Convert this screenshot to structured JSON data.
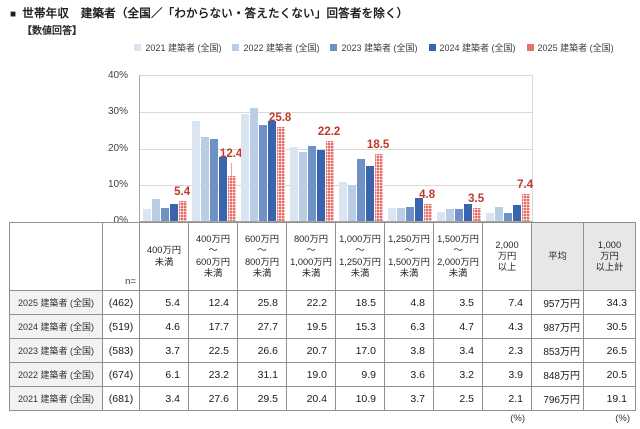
{
  "header": {
    "bullet": "■",
    "title": "世帯年収　建築者（全国／「わからない・答えたくない」回答者を除く）",
    "subtitle": "【数値回答】"
  },
  "chart_data": {
    "type": "bar",
    "title": "世帯年収 建築者（全国／「わからない・答えたくない」回答者を除く）",
    "categories": [
      "400万円未満",
      "400万円～600万円未満",
      "600万円～800万円未満",
      "800万円～1,000万円未満",
      "1,000万円～1,250万円未満",
      "1,250万円～1,500万円未満",
      "1,500万円～2,000万円未満",
      "2,000万円以上"
    ],
    "series": [
      {
        "name": "2021 建築者 (全国)",
        "color": "#dbe5f1",
        "pattern": false,
        "values": [
          3.4,
          27.6,
          29.5,
          20.4,
          10.9,
          3.7,
          2.5,
          2.1
        ]
      },
      {
        "name": "2022 建築者 (全国)",
        "color": "#b9cde4",
        "pattern": false,
        "values": [
          6.1,
          23.2,
          31.1,
          19.0,
          9.9,
          3.6,
          3.2,
          3.9
        ]
      },
      {
        "name": "2023 建築者 (全国)",
        "color": "#6f92c6",
        "pattern": false,
        "values": [
          3.7,
          22.5,
          26.6,
          20.7,
          17.0,
          3.8,
          3.4,
          2.3
        ]
      },
      {
        "name": "2024 建築者 (全国)",
        "color": "#3a64ad",
        "pattern": false,
        "values": [
          4.6,
          17.7,
          27.7,
          19.5,
          15.3,
          6.3,
          4.7,
          4.3
        ]
      },
      {
        "name": "2025 建築者 (全国)",
        "color": "#e4736e",
        "pattern": true,
        "values": [
          5.4,
          12.4,
          25.8,
          22.2,
          18.5,
          4.8,
          3.5,
          7.4
        ]
      }
    ],
    "data_labels": {
      "series": "2025 建築者 (全国)",
      "values": [
        "5.4",
        "12.4",
        "25.8",
        "22.2",
        "18.5",
        "4.8",
        "3.5",
        "7.4"
      ],
      "color": "#c0392b",
      "raised_index": 1
    },
    "ylim": [
      0,
      40
    ],
    "yticks": [
      "0%",
      "10%",
      "20%",
      "30%",
      "40%"
    ],
    "grid": true,
    "legend_position": "top"
  },
  "table": {
    "n_label": "n=",
    "columns": [
      "400万円\n未満",
      "400万円\n～\n600万円\n未満",
      "600万円\n～\n800万円\n未満",
      "800万円\n～\n1,000万円\n未満",
      "1,000万円\n～\n1,250万円\n未満",
      "1,250万円\n～\n1,500万円\n未満",
      "1,500万円\n～\n2,000万円\n未満",
      "2,000\n万円\n以上",
      "平均",
      "1,000\n万円\n以上計"
    ],
    "shaded_columns": [
      8,
      9
    ],
    "rows": [
      {
        "label": "2025 建築者 (全国)",
        "n": "(462)",
        "values": [
          "5.4",
          "12.4",
          "25.8",
          "22.2",
          "18.5",
          "4.8",
          "3.5",
          "7.4",
          "957万円",
          "34.3"
        ]
      },
      {
        "label": "2024 建築者 (全国)",
        "n": "(519)",
        "values": [
          "4.6",
          "17.7",
          "27.7",
          "19.5",
          "15.3",
          "6.3",
          "4.7",
          "4.3",
          "987万円",
          "30.5"
        ]
      },
      {
        "label": "2023 建築者 (全国)",
        "n": "(583)",
        "values": [
          "3.7",
          "22.5",
          "26.6",
          "20.7",
          "17.0",
          "3.8",
          "3.4",
          "2.3",
          "853万円",
          "26.5"
        ]
      },
      {
        "label": "2022 建築者 (全国)",
        "n": "(674)",
        "values": [
          "6.1",
          "23.2",
          "31.1",
          "19.0",
          "9.9",
          "3.6",
          "3.2",
          "3.9",
          "848万円",
          "20.5"
        ]
      },
      {
        "label": "2021 建築者 (全国)",
        "n": "(681)",
        "values": [
          "3.4",
          "27.6",
          "29.5",
          "20.4",
          "10.9",
          "3.7",
          "2.5",
          "2.1",
          "796万円",
          "19.1"
        ]
      }
    ],
    "unit_notes": [
      "(%)",
      "(%)"
    ]
  },
  "colors": {
    "grid": "#d9d9d9",
    "axis": "#a6a6a6",
    "table_border": "#909090",
    "shaded_header": "#e7e7e7",
    "row_label_bg": "#f2f2f2",
    "data_label": "#c0392b"
  }
}
